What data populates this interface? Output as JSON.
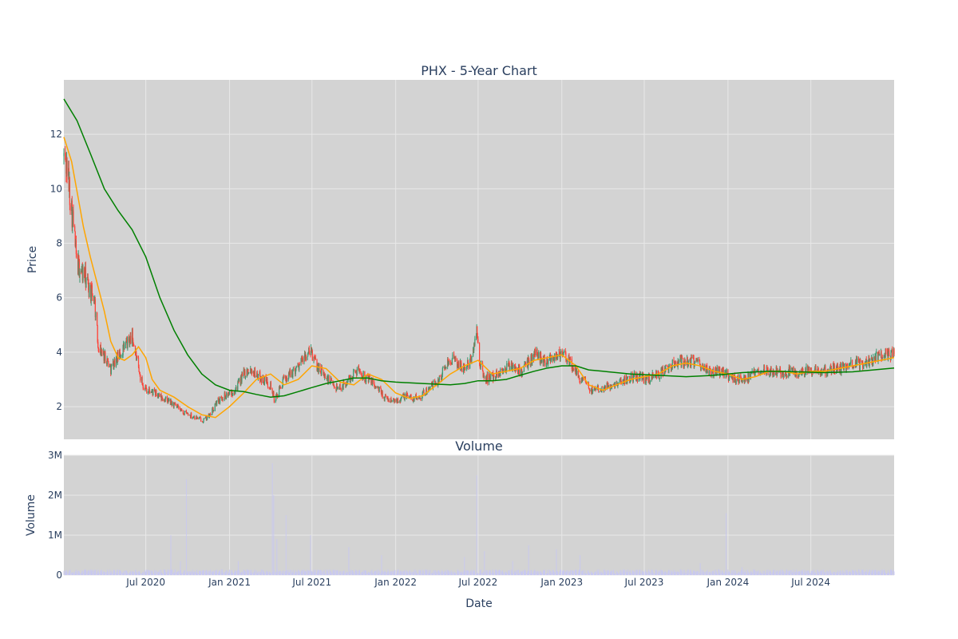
{
  "chart_data": [
    {
      "type": "candlestick",
      "title": "PHX - 5-Year Chart",
      "ylabel": "Price",
      "ylim": [
        0.8,
        14.0
      ],
      "yticks": [
        2,
        4,
        6,
        8,
        10,
        12
      ],
      "xlim": [
        "2020-01-03",
        "2024-12-31"
      ],
      "grid": true,
      "colors": {
        "background": "#d3d3d3",
        "grid": "#e8e8e8",
        "up": "#3d9970",
        "down": "#ff4136",
        "ma50": "#ffa500",
        "ma200": "#008000"
      },
      "close_series": [
        [
          "2020-01-03",
          11.2
        ],
        [
          "2020-01-10",
          10.8
        ],
        [
          "2020-01-17",
          9.7
        ],
        [
          "2020-01-24",
          8.7
        ],
        [
          "2020-01-31",
          7.3
        ],
        [
          "2020-02-10",
          7.0
        ],
        [
          "2020-02-20",
          6.7
        ],
        [
          "2020-03-01",
          6.2
        ],
        [
          "2020-03-10",
          6.0
        ],
        [
          "2020-03-18",
          4.3
        ],
        [
          "2020-03-25",
          4.0
        ],
        [
          "2020-04-05",
          3.8
        ],
        [
          "2020-04-15",
          3.4
        ],
        [
          "2020-04-25",
          3.7
        ],
        [
          "2020-05-05",
          3.9
        ],
        [
          "2020-05-15",
          4.2
        ],
        [
          "2020-05-25",
          4.4
        ],
        [
          "2020-06-01",
          4.6
        ],
        [
          "2020-06-08",
          4.0
        ],
        [
          "2020-06-15",
          3.3
        ],
        [
          "2020-06-25",
          2.8
        ],
        [
          "2020-07-05",
          2.6
        ],
        [
          "2020-07-20",
          2.5
        ],
        [
          "2020-08-05",
          2.3
        ],
        [
          "2020-08-20",
          2.2
        ],
        [
          "2020-09-05",
          2.0
        ],
        [
          "2020-09-20",
          1.8
        ],
        [
          "2020-10-05",
          1.7
        ],
        [
          "2020-10-20",
          1.6
        ],
        [
          "2020-11-05",
          1.5
        ],
        [
          "2020-11-20",
          1.7
        ],
        [
          "2020-12-05",
          2.2
        ],
        [
          "2020-12-20",
          2.4
        ],
        [
          "2021-01-05",
          2.5
        ],
        [
          "2021-01-20",
          2.8
        ],
        [
          "2021-02-01",
          3.2
        ],
        [
          "2021-02-15",
          3.4
        ],
        [
          "2021-03-01",
          3.2
        ],
        [
          "2021-03-15",
          3.0
        ],
        [
          "2021-04-01",
          2.8
        ],
        [
          "2021-04-10",
          2.2
        ],
        [
          "2021-04-20",
          2.6
        ],
        [
          "2021-05-01",
          3.0
        ],
        [
          "2021-05-15",
          3.2
        ],
        [
          "2021-06-01",
          3.5
        ],
        [
          "2021-06-15",
          3.8
        ],
        [
          "2021-06-28",
          4.0
        ],
        [
          "2021-07-10",
          3.6
        ],
        [
          "2021-07-25",
          3.2
        ],
        [
          "2021-08-10",
          2.9
        ],
        [
          "2021-08-25",
          2.7
        ],
        [
          "2021-09-10",
          2.8
        ],
        [
          "2021-09-25",
          3.1
        ],
        [
          "2021-10-10",
          3.4
        ],
        [
          "2021-10-25",
          3.1
        ],
        [
          "2021-11-10",
          2.9
        ],
        [
          "2021-11-25",
          2.6
        ],
        [
          "2021-12-10",
          2.3
        ],
        [
          "2021-12-25",
          2.2
        ],
        [
          "2022-01-10",
          2.3
        ],
        [
          "2022-01-25",
          2.4
        ],
        [
          "2022-02-10",
          2.3
        ],
        [
          "2022-02-25",
          2.4
        ],
        [
          "2022-03-10",
          2.6
        ],
        [
          "2022-03-25",
          2.8
        ],
        [
          "2022-04-10",
          3.1
        ],
        [
          "2022-04-20",
          3.5
        ],
        [
          "2022-05-01",
          3.8
        ],
        [
          "2022-05-15",
          3.6
        ],
        [
          "2022-06-01",
          3.4
        ],
        [
          "2022-06-15",
          3.7
        ],
        [
          "2022-06-28",
          4.7
        ],
        [
          "2022-07-05",
          3.6
        ],
        [
          "2022-07-15",
          3.0
        ],
        [
          "2022-08-01",
          3.1
        ],
        [
          "2022-08-20",
          3.3
        ],
        [
          "2022-09-05",
          3.5
        ],
        [
          "2022-09-20",
          3.4
        ],
        [
          "2022-10-05",
          3.3
        ],
        [
          "2022-10-20",
          3.6
        ],
        [
          "2022-11-05",
          4.0
        ],
        [
          "2022-11-20",
          3.7
        ],
        [
          "2022-12-05",
          3.8
        ],
        [
          "2022-12-20",
          3.9
        ],
        [
          "2023-01-05",
          3.9
        ],
        [
          "2023-01-20",
          3.6
        ],
        [
          "2023-02-05",
          3.1
        ],
        [
          "2023-02-20",
          2.9
        ],
        [
          "2023-03-05",
          2.6
        ],
        [
          "2023-03-20",
          2.7
        ],
        [
          "2023-04-05",
          2.7
        ],
        [
          "2023-04-20",
          2.8
        ],
        [
          "2023-05-05",
          2.9
        ],
        [
          "2023-05-20",
          3.0
        ],
        [
          "2023-06-05",
          3.1
        ],
        [
          "2023-06-20",
          3.1
        ],
        [
          "2023-07-05",
          3.0
        ],
        [
          "2023-07-20",
          3.1
        ],
        [
          "2023-08-05",
          3.2
        ],
        [
          "2023-08-20",
          3.4
        ],
        [
          "2023-09-05",
          3.6
        ],
        [
          "2023-09-20",
          3.7
        ],
        [
          "2023-10-05",
          3.6
        ],
        [
          "2023-10-20",
          3.7
        ],
        [
          "2023-11-05",
          3.4
        ],
        [
          "2023-11-20",
          3.3
        ],
        [
          "2023-12-05",
          3.3
        ],
        [
          "2023-12-20",
          3.3
        ],
        [
          "2024-01-05",
          3.1
        ],
        [
          "2024-01-20",
          3.0
        ],
        [
          "2024-02-05",
          3.0
        ],
        [
          "2024-02-20",
          3.1
        ],
        [
          "2024-03-05",
          3.3
        ],
        [
          "2024-03-20",
          3.4
        ],
        [
          "2024-04-05",
          3.3
        ],
        [
          "2024-04-20",
          3.3
        ],
        [
          "2024-05-05",
          3.2
        ],
        [
          "2024-05-20",
          3.3
        ],
        [
          "2024-06-05",
          3.2
        ],
        [
          "2024-06-20",
          3.3
        ],
        [
          "2024-07-05",
          3.3
        ],
        [
          "2024-07-20",
          3.3
        ],
        [
          "2024-08-05",
          3.3
        ],
        [
          "2024-08-20",
          3.4
        ],
        [
          "2024-09-05",
          3.4
        ],
        [
          "2024-09-20",
          3.5
        ],
        [
          "2024-10-05",
          3.6
        ],
        [
          "2024-10-20",
          3.5
        ],
        [
          "2024-11-05",
          3.7
        ],
        [
          "2024-11-20",
          3.8
        ],
        [
          "2024-12-05",
          3.9
        ],
        [
          "2024-12-20",
          3.9
        ],
        [
          "2024-12-31",
          4.0
        ]
      ],
      "series": [
        {
          "values": [
            [
              "2020-01-03",
              11.9
            ],
            [
              "2020-01-20",
              11.0
            ],
            [
              "2020-02-01",
              9.9
            ],
            [
              "2020-02-15",
              8.6
            ],
            [
              "2020-03-01",
              7.5
            ],
            [
              "2020-03-15",
              6.6
            ],
            [
              "2020-04-01",
              5.5
            ],
            [
              "2020-04-15",
              4.4
            ],
            [
              "2020-05-01",
              3.8
            ],
            [
              "2020-05-15",
              3.7
            ],
            [
              "2020-06-01",
              3.9
            ],
            [
              "2020-06-15",
              4.2
            ],
            [
              "2020-07-01",
              3.8
            ],
            [
              "2020-07-15",
              3.0
            ],
            [
              "2020-08-01",
              2.6
            ],
            [
              "2020-09-01",
              2.35
            ],
            [
              "2020-10-01",
              2.0
            ],
            [
              "2020-11-01",
              1.7
            ],
            [
              "2020-12-01",
              1.6
            ],
            [
              "2021-01-01",
              2.0
            ],
            [
              "2021-02-01",
              2.5
            ],
            [
              "2021-03-01",
              3.0
            ],
            [
              "2021-04-01",
              3.2
            ],
            [
              "2021-05-01",
              2.8
            ],
            [
              "2021-06-01",
              3.0
            ],
            [
              "2021-07-01",
              3.5
            ],
            [
              "2021-08-01",
              3.4
            ],
            [
              "2021-09-01",
              2.9
            ],
            [
              "2021-10-01",
              2.8
            ],
            [
              "2021-11-01",
              3.2
            ],
            [
              "2021-12-01",
              3.0
            ],
            [
              "2022-01-01",
              2.5
            ],
            [
              "2022-02-01",
              2.3
            ],
            [
              "2022-03-01",
              2.4
            ],
            [
              "2022-04-01",
              2.8
            ],
            [
              "2022-05-01",
              3.2
            ],
            [
              "2022-06-01",
              3.5
            ],
            [
              "2022-07-01",
              3.7
            ],
            [
              "2022-08-01",
              3.2
            ],
            [
              "2022-09-01",
              3.3
            ],
            [
              "2022-10-01",
              3.4
            ],
            [
              "2022-11-01",
              3.7
            ],
            [
              "2022-12-01",
              3.8
            ],
            [
              "2023-01-01",
              3.9
            ],
            [
              "2023-02-01",
              3.5
            ],
            [
              "2023-03-01",
              2.8
            ],
            [
              "2023-04-01",
              2.6
            ],
            [
              "2023-05-01",
              2.8
            ],
            [
              "2023-06-01",
              3.0
            ],
            [
              "2023-07-01",
              3.1
            ],
            [
              "2023-08-01",
              3.2
            ],
            [
              "2023-09-01",
              3.5
            ],
            [
              "2023-10-01",
              3.6
            ],
            [
              "2023-11-01",
              3.5
            ],
            [
              "2023-12-01",
              3.3
            ],
            [
              "2024-01-01",
              3.2
            ],
            [
              "2024-02-01",
              3.0
            ],
            [
              "2024-03-01",
              3.1
            ],
            [
              "2024-04-01",
              3.3
            ],
            [
              "2024-05-01",
              3.3
            ],
            [
              "2024-06-01",
              3.2
            ],
            [
              "2024-07-01",
              3.3
            ],
            [
              "2024-08-01",
              3.3
            ],
            [
              "2024-09-01",
              3.4
            ],
            [
              "2024-10-01",
              3.5
            ],
            [
              "2024-11-01",
              3.6
            ],
            [
              "2024-12-01",
              3.7
            ],
            [
              "2024-12-31",
              3.8
            ]
          ]
        },
        {
          "values": [
            [
              "2020-01-03",
              13.3
            ],
            [
              "2020-02-01",
              12.5
            ],
            [
              "2020-03-01",
              11.3
            ],
            [
              "2020-04-01",
              10.0
            ],
            [
              "2020-05-01",
              9.2
            ],
            [
              "2020-06-01",
              8.5
            ],
            [
              "2020-07-01",
              7.5
            ],
            [
              "2020-08-01",
              6.0
            ],
            [
              "2020-09-01",
              4.8
            ],
            [
              "2020-10-01",
              3.9
            ],
            [
              "2020-11-01",
              3.2
            ],
            [
              "2020-12-01",
              2.8
            ],
            [
              "2021-01-01",
              2.6
            ],
            [
              "2021-02-01",
              2.55
            ],
            [
              "2021-03-01",
              2.45
            ],
            [
              "2021-04-01",
              2.35
            ],
            [
              "2021-05-01",
              2.4
            ],
            [
              "2021-06-01",
              2.55
            ],
            [
              "2021-07-01",
              2.7
            ],
            [
              "2021-08-01",
              2.85
            ],
            [
              "2021-09-01",
              2.95
            ],
            [
              "2021-10-01",
              3.05
            ],
            [
              "2021-11-01",
              3.05
            ],
            [
              "2021-12-01",
              2.95
            ],
            [
              "2022-01-01",
              2.9
            ],
            [
              "2022-03-01",
              2.85
            ],
            [
              "2022-05-01",
              2.8
            ],
            [
              "2022-06-01",
              2.85
            ],
            [
              "2022-07-01",
              2.95
            ],
            [
              "2022-08-01",
              2.95
            ],
            [
              "2022-09-01",
              3.0
            ],
            [
              "2022-10-01",
              3.15
            ],
            [
              "2022-11-01",
              3.3
            ],
            [
              "2022-12-01",
              3.42
            ],
            [
              "2023-01-01",
              3.5
            ],
            [
              "2023-02-01",
              3.5
            ],
            [
              "2023-03-01",
              3.35
            ],
            [
              "2023-04-01",
              3.3
            ],
            [
              "2023-06-01",
              3.2
            ],
            [
              "2023-08-01",
              3.15
            ],
            [
              "2023-10-01",
              3.1
            ],
            [
              "2023-12-01",
              3.15
            ],
            [
              "2024-02-01",
              3.25
            ],
            [
              "2024-04-01",
              3.3
            ],
            [
              "2024-06-01",
              3.28
            ],
            [
              "2024-08-01",
              3.25
            ],
            [
              "2024-10-01",
              3.28
            ],
            [
              "2024-12-31",
              3.42
            ]
          ]
        }
      ]
    },
    {
      "type": "bar",
      "title": "Volume",
      "xlabel": "Date",
      "ylabel": "Volume",
      "ylim": [
        0,
        3000000
      ],
      "yticks": [
        "0",
        "1M",
        "2M",
        "3M"
      ],
      "xticks": [
        "Jul 2020",
        "Jan 2021",
        "Jul 2021",
        "Jan 2022",
        "Jul 2022",
        "Jan 2023",
        "Jul 2023",
        "Jan 2024",
        "Jul 2024"
      ],
      "grid": true,
      "colors": {
        "background": "#d3d3d3",
        "bars": "#c8c8f0"
      },
      "baseline_volume": 120000,
      "spikes": [
        [
          "2020-01-25",
          280000
        ],
        [
          "2020-06-28",
          1600000
        ],
        [
          "2020-07-05",
          450000
        ],
        [
          "2020-08-25",
          1000000
        ],
        [
          "2020-09-15",
          350000
        ],
        [
          "2020-09-28",
          2400000
        ],
        [
          "2020-12-05",
          550000
        ],
        [
          "2021-01-20",
          350000
        ],
        [
          "2021-04-05",
          2800000
        ],
        [
          "2021-04-08",
          2000000
        ],
        [
          "2021-04-15",
          900000
        ],
        [
          "2021-05-05",
          1500000
        ],
        [
          "2021-06-05",
          450000
        ],
        [
          "2021-06-28",
          1000000
        ],
        [
          "2021-07-10",
          400000
        ],
        [
          "2021-09-20",
          700000
        ],
        [
          "2021-12-01",
          500000
        ],
        [
          "2022-02-20",
          400000
        ],
        [
          "2022-03-20",
          1500000
        ],
        [
          "2022-05-01",
          1100000
        ],
        [
          "2022-06-01",
          450000
        ],
        [
          "2022-06-25",
          1400000
        ],
        [
          "2022-06-28",
          2500000
        ],
        [
          "2022-07-03",
          800000
        ],
        [
          "2022-07-15",
          600000
        ],
        [
          "2022-09-15",
          350000
        ],
        [
          "2022-10-20",
          750000
        ],
        [
          "2022-12-20",
          650000
        ],
        [
          "2023-02-10",
          500000
        ],
        [
          "2023-11-01",
          300000
        ],
        [
          "2023-12-28",
          1550000
        ],
        [
          "2024-02-01",
          200000
        ],
        [
          "2024-10-20",
          250000
        ]
      ]
    }
  ]
}
